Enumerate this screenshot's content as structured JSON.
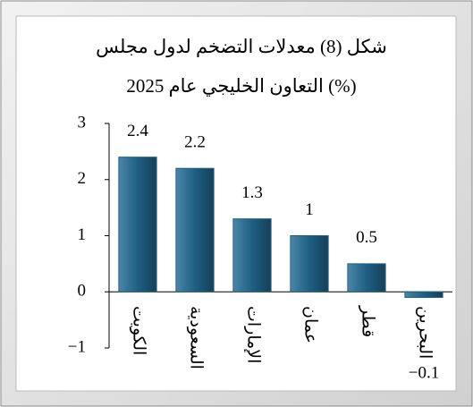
{
  "chart_data": {
    "type": "bar",
    "title": [
      "شكل (8) معدلات التضخم لدول مجلس",
      "التعاون الخليجي عام 2025 (%)"
    ],
    "categories": [
      "الكويت",
      "السعودية",
      "الإمارات",
      "عمان",
      "قطر",
      "البحرين"
    ],
    "values": [
      2.4,
      2.2,
      1.3,
      1,
      0.5,
      -0.1
    ],
    "value_labels": [
      "2.4",
      "2.2",
      "1.3",
      "1",
      "0.5",
      "−0.1"
    ],
    "color": "#1f5f82",
    "ylim": [
      -1,
      3
    ],
    "yticks": [
      {
        "value": -1,
        "label": "−1"
      },
      0,
      1,
      2,
      3
    ],
    "grid": false
  }
}
